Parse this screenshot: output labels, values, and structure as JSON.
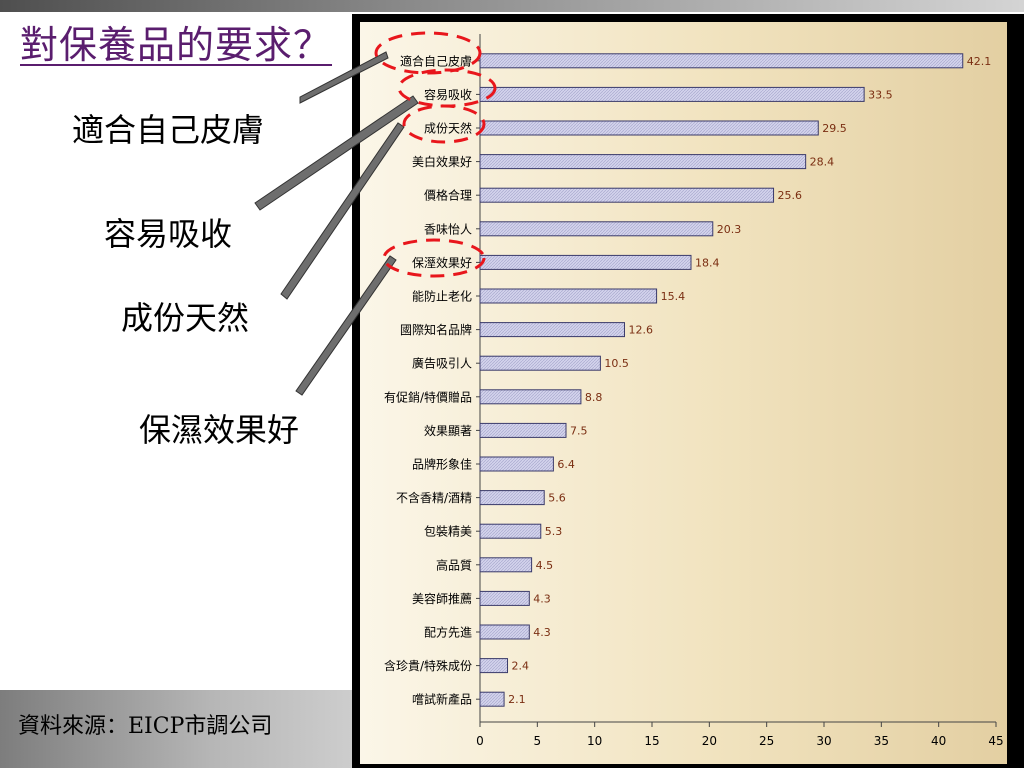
{
  "slide": {
    "title": "對保養品的要求？",
    "callouts": [
      "適合自己皮膚",
      "容易吸收",
      "成份天然",
      "保濕效果好"
    ],
    "source": "資料來源：EICP市調公司"
  },
  "colors": {
    "title": "#5a1d6e",
    "bar_fill": "#d3d3ec",
    "bar_stroke": "#3a3a6a",
    "value_label": "#7a2e12",
    "highlight_ellipse": "#e8161c",
    "pointer": "#6e6e6e"
  },
  "chart_data": {
    "type": "bar",
    "orientation": "horizontal",
    "categories": [
      "適合自己皮膚",
      "容易吸收",
      "成份天然",
      "美白效果好",
      "價格合理",
      "香味怡人",
      "保溼效果好",
      "能防止老化",
      "國際知名品牌",
      "廣告吸引人",
      "有促銷/特價贈品",
      "效果顯著",
      "品牌形象佳",
      "不含香精/酒精",
      "包裝精美",
      "高品質",
      "美容師推薦",
      "配方先進",
      "含珍貴/特殊成份",
      "嚐試新產品"
    ],
    "values": [
      42.1,
      33.5,
      29.5,
      28.4,
      25.6,
      20.3,
      18.4,
      15.4,
      12.6,
      10.5,
      8.8,
      7.5,
      6.4,
      5.6,
      5.3,
      4.5,
      4.3,
      4.3,
      2.4,
      2.1
    ],
    "value_labels": [
      "42.1",
      "33.5",
      "29.5",
      "28.4",
      "25.6",
      "20.3",
      "18.4",
      "15.4",
      "12.6",
      "10.5",
      "8.8",
      "7.5",
      "6.4",
      "5.6",
      "5.3",
      "4.5",
      "4.3",
      "4.3",
      "2.4",
      "2.1"
    ],
    "xlim": [
      0,
      45
    ],
    "x_ticks": [
      0,
      5,
      10,
      15,
      20,
      25,
      30,
      35,
      40,
      45
    ],
    "highlighted_categories": [
      "適合自己皮膚",
      "容易吸收",
      "成份天然",
      "保溼效果好"
    ],
    "grid": false,
    "legend": "none",
    "title": "",
    "xlabel": "",
    "ylabel": ""
  }
}
